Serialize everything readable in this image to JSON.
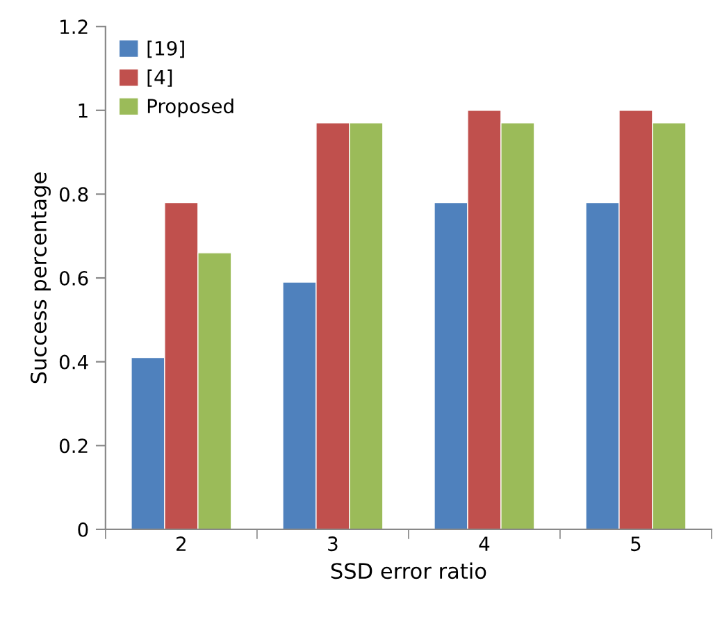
{
  "chart_data": {
    "type": "bar",
    "xlabel": "SSD error ratio",
    "ylabel": "Success percentage",
    "categories": [
      "2",
      "3",
      "4",
      "5"
    ],
    "series": [
      {
        "name": "[19]",
        "color": "#4f81bd",
        "values": [
          0.41,
          0.59,
          0.78,
          0.78
        ]
      },
      {
        "name": "[4]",
        "color": "#c0504d",
        "values": [
          0.78,
          0.97,
          1,
          1
        ]
      },
      {
        "name": "Proposed",
        "color": "#9bbb59",
        "values": [
          0.66,
          0.97,
          0.97,
          0.97
        ]
      }
    ],
    "ylim": [
      0,
      1.2
    ],
    "yticks": [
      0,
      0.2,
      0.4,
      0.6,
      0.8,
      1,
      1.2
    ],
    "grid": false,
    "legend": "top left"
  }
}
